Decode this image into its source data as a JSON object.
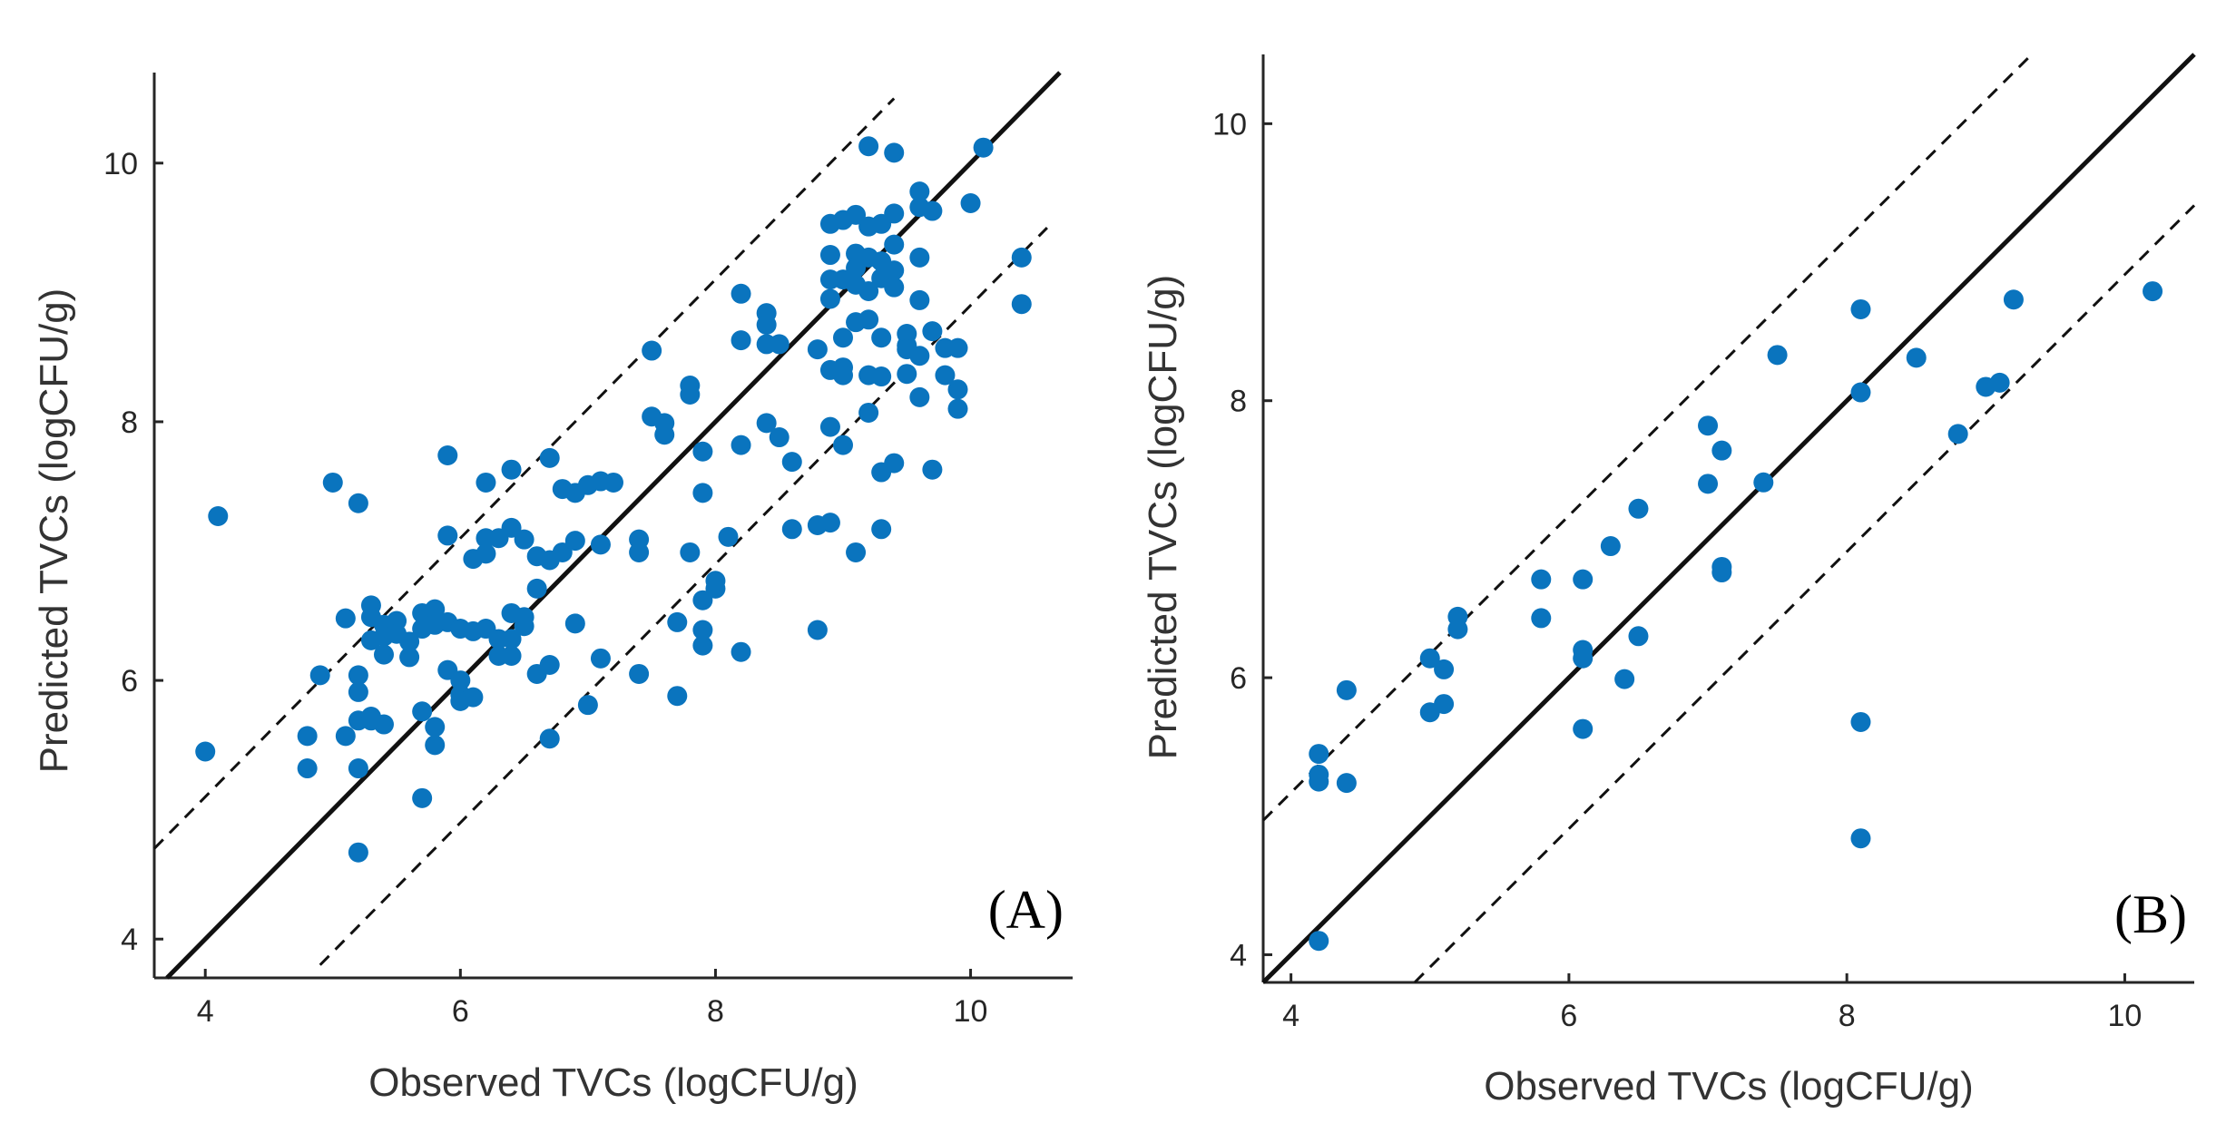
{
  "colors": {
    "points": "#0a74be",
    "axis": "#262626",
    "lines": "#111111",
    "background": "#ffffff"
  },
  "chart_data": [
    {
      "type": "scatter",
      "title": "",
      "panel_label": "(A)",
      "xlabel": "Observed TVCs (logCFU/g)",
      "ylabel": "Predicted TVCs (logCFU/g)",
      "xlim": [
        3.6,
        10.8
      ],
      "ylim": [
        3.7,
        10.7
      ],
      "xticks": [
        4,
        6,
        8,
        10
      ],
      "yticks": [
        4,
        6,
        8,
        10
      ],
      "reference_lines": [
        {
          "kind": "identity",
          "style": "solid",
          "slope": 1,
          "intercept": 0
        },
        {
          "kind": "upper-bound",
          "style": "dashed",
          "slope": 1,
          "intercept": 1.1,
          "x_from": 3.6,
          "x_to": 9.4
        },
        {
          "kind": "lower-bound",
          "style": "dashed",
          "slope": 1,
          "intercept": -1.1,
          "x_from": 4.9,
          "x_to": 10.6
        }
      ],
      "x": [
        4.0,
        4.1,
        4.8,
        4.8,
        4.9,
        5.0,
        5.1,
        5.1,
        5.2,
        5.2,
        5.2,
        5.2,
        5.2,
        5.2,
        5.3,
        5.3,
        5.3,
        5.3,
        5.3,
        5.4,
        5.4,
        5.4,
        5.4,
        5.5,
        5.5,
        5.6,
        5.6,
        5.7,
        5.7,
        5.7,
        5.7,
        5.8,
        5.8,
        5.8,
        5.8,
        5.9,
        5.9,
        5.9,
        5.9,
        6.0,
        6.0,
        6.0,
        6.0,
        6.1,
        6.1,
        6.1,
        6.2,
        6.2,
        6.2,
        6.2,
        6.3,
        6.3,
        6.3,
        6.4,
        6.4,
        6.4,
        6.4,
        6.4,
        6.5,
        6.5,
        6.5,
        6.6,
        6.6,
        6.6,
        6.7,
        6.7,
        6.7,
        6.7,
        6.8,
        6.8,
        6.9,
        6.9,
        6.9,
        7.0,
        7.0,
        7.1,
        7.1,
        7.1,
        7.2,
        7.4,
        7.4,
        7.4,
        7.5,
        7.5,
        7.6,
        7.6,
        7.7,
        7.7,
        7.8,
        7.8,
        7.8,
        7.9,
        7.9,
        7.9,
        7.9,
        7.9,
        8.0,
        8.0,
        8.1,
        8.2,
        8.2,
        8.2,
        8.2,
        8.4,
        8.4,
        8.4,
        8.4,
        8.5,
        8.5,
        8.6,
        8.6,
        8.8,
        8.8,
        8.8,
        8.9,
        8.9,
        8.9,
        8.9,
        8.9,
        8.9,
        8.9,
        9.0,
        9.0,
        9.0,
        9.0,
        9.0,
        9.0,
        9.1,
        9.1,
        9.1,
        9.1,
        9.1,
        9.1,
        9.2,
        9.2,
        9.2,
        9.2,
        9.2,
        9.2,
        9.2,
        9.3,
        9.3,
        9.3,
        9.3,
        9.3,
        9.3,
        9.3,
        9.4,
        9.4,
        9.4,
        9.4,
        9.4,
        9.4,
        9.5,
        9.5,
        9.5,
        9.5,
        9.6,
        9.6,
        9.6,
        9.6,
        9.6,
        9.6,
        9.7,
        9.7,
        9.7,
        9.8,
        9.8,
        9.9,
        9.9,
        9.9,
        10.0,
        10.1,
        10.4,
        10.4
      ],
      "y": [
        5.45,
        7.27,
        5.32,
        5.57,
        6.04,
        7.53,
        5.57,
        6.48,
        7.37,
        6.04,
        5.91,
        5.69,
        5.32,
        4.67,
        6.58,
        6.49,
        6.31,
        5.72,
        5.69,
        6.43,
        6.34,
        6.2,
        5.66,
        6.46,
        6.36,
        6.3,
        6.18,
        6.52,
        6.4,
        5.76,
        5.09,
        6.55,
        6.43,
        5.64,
        5.5,
        7.74,
        7.12,
        6.45,
        6.08,
        6.4,
        6.0,
        5.89,
        5.84,
        6.94,
        6.38,
        5.87,
        7.53,
        7.1,
        6.98,
        6.4,
        6.32,
        6.19,
        7.1,
        6.32,
        6.19,
        7.63,
        7.18,
        6.52,
        6.49,
        6.42,
        7.09,
        6.96,
        6.71,
        6.05,
        7.72,
        6.93,
        6.12,
        5.55,
        7.48,
        6.99,
        7.45,
        6.44,
        7.08,
        7.51,
        5.81,
        7.54,
        7.05,
        6.17,
        7.53,
        6.05,
        6.99,
        7.09,
        8.55,
        8.04,
        7.99,
        7.9,
        6.45,
        5.88,
        8.28,
        8.21,
        6.99,
        7.45,
        6.27,
        6.39,
        6.62,
        7.77,
        6.71,
        6.77,
        7.11,
        8.99,
        8.63,
        7.82,
        6.22,
        8.84,
        8.75,
        8.6,
        7.99,
        8.6,
        7.88,
        7.69,
        7.17,
        8.56,
        7.2,
        6.39,
        9.53,
        9.29,
        9.1,
        8.95,
        8.4,
        7.96,
        7.22,
        9.56,
        9.1,
        8.65,
        8.42,
        8.36,
        7.82,
        9.6,
        9.3,
        9.19,
        9.06,
        8.77,
        6.99,
        10.13,
        9.51,
        9.27,
        9.01,
        8.79,
        8.36,
        8.07,
        9.53,
        9.24,
        9.11,
        8.65,
        8.35,
        7.61,
        7.17,
        10.08,
        9.61,
        9.37,
        9.17,
        9.04,
        7.68,
        8.68,
        8.59,
        8.56,
        8.37,
        9.78,
        9.66,
        9.27,
        8.94,
        8.51,
        8.19,
        9.63,
        8.7,
        7.63,
        8.57,
        8.36,
        8.57,
        8.25,
        8.1,
        9.69,
        10.12,
        9.27,
        8.91
      ]
    },
    {
      "type": "scatter",
      "title": "",
      "panel_label": "(B)",
      "xlabel": "Observed TVCs (logCFU/g)",
      "ylabel": "Predicted TVCs (logCFU/g)",
      "xlim": [
        3.8,
        10.5
      ],
      "ylim": [
        3.8,
        10.5
      ],
      "xticks": [
        4,
        6,
        8,
        10
      ],
      "yticks": [
        4,
        6,
        8,
        10
      ],
      "reference_lines": [
        {
          "kind": "identity",
          "style": "solid",
          "slope": 1,
          "intercept": 0
        },
        {
          "kind": "upper-bound",
          "style": "dashed",
          "slope": 1,
          "intercept": 1.17,
          "x_from": 3.8,
          "x_to": 9.33
        },
        {
          "kind": "lower-bound",
          "style": "dashed",
          "slope": 1,
          "intercept": -1.09,
          "x_from": 4.89,
          "x_to": 10.5
        }
      ],
      "x": [
        4.2,
        4.2,
        4.2,
        4.2,
        4.4,
        4.4,
        5.0,
        5.0,
        5.1,
        5.1,
        5.2,
        5.2,
        5.8,
        5.8,
        6.1,
        6.1,
        6.1,
        6.1,
        6.3,
        6.4,
        6.5,
        6.5,
        7.0,
        7.0,
        7.1,
        7.1,
        7.1,
        7.4,
        7.5,
        8.1,
        8.1,
        8.1,
        8.1,
        8.5,
        8.8,
        9.0,
        9.1,
        9.2,
        10.2
      ],
      "y": [
        4.1,
        5.25,
        5.3,
        5.45,
        5.91,
        5.24,
        6.14,
        5.75,
        6.06,
        5.81,
        6.35,
        6.44,
        6.71,
        6.43,
        6.71,
        6.2,
        6.14,
        5.63,
        6.95,
        5.99,
        7.22,
        6.3,
        7.82,
        7.4,
        7.64,
        6.8,
        6.76,
        7.41,
        8.33,
        8.66,
        8.06,
        5.68,
        4.84,
        8.31,
        7.76,
        8.1,
        8.13,
        8.73,
        8.79
      ]
    }
  ]
}
